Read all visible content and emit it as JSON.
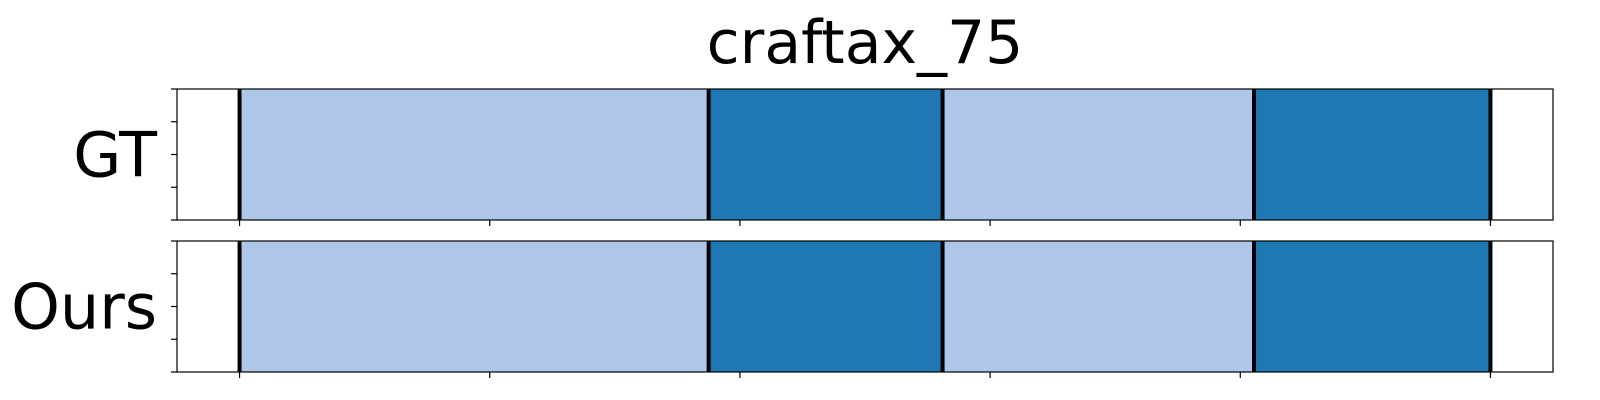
{
  "chart_data": {
    "type": "segmentation-timeline",
    "title": "craftax_75",
    "x_range": [
      -0.5,
      10.5
    ],
    "x_ticks": [
      0,
      2,
      4,
      6,
      8,
      10
    ],
    "y_ticks_per_panel": 5,
    "colors": {
      "light": "#aec7e8",
      "dark": "#1f77b4"
    },
    "boundary_color": "#000000",
    "rows": [
      {
        "label": "GT",
        "segments": [
          {
            "start": 0.0,
            "end": 3.75,
            "class": "light"
          },
          {
            "start": 3.75,
            "end": 5.62,
            "class": "dark"
          },
          {
            "start": 5.62,
            "end": 8.11,
            "class": "light"
          },
          {
            "start": 8.11,
            "end": 10.0,
            "class": "dark"
          }
        ],
        "boundaries": [
          0.0,
          3.75,
          5.62,
          8.11,
          10.0
        ]
      },
      {
        "label": "Ours",
        "segments": [
          {
            "start": 0.0,
            "end": 3.75,
            "class": "light"
          },
          {
            "start": 3.75,
            "end": 5.62,
            "class": "dark"
          },
          {
            "start": 5.62,
            "end": 8.11,
            "class": "light"
          },
          {
            "start": 8.11,
            "end": 10.0,
            "class": "dark"
          }
        ],
        "boundaries": [
          0.0,
          3.75,
          5.62,
          8.11,
          10.0
        ]
      }
    ]
  }
}
